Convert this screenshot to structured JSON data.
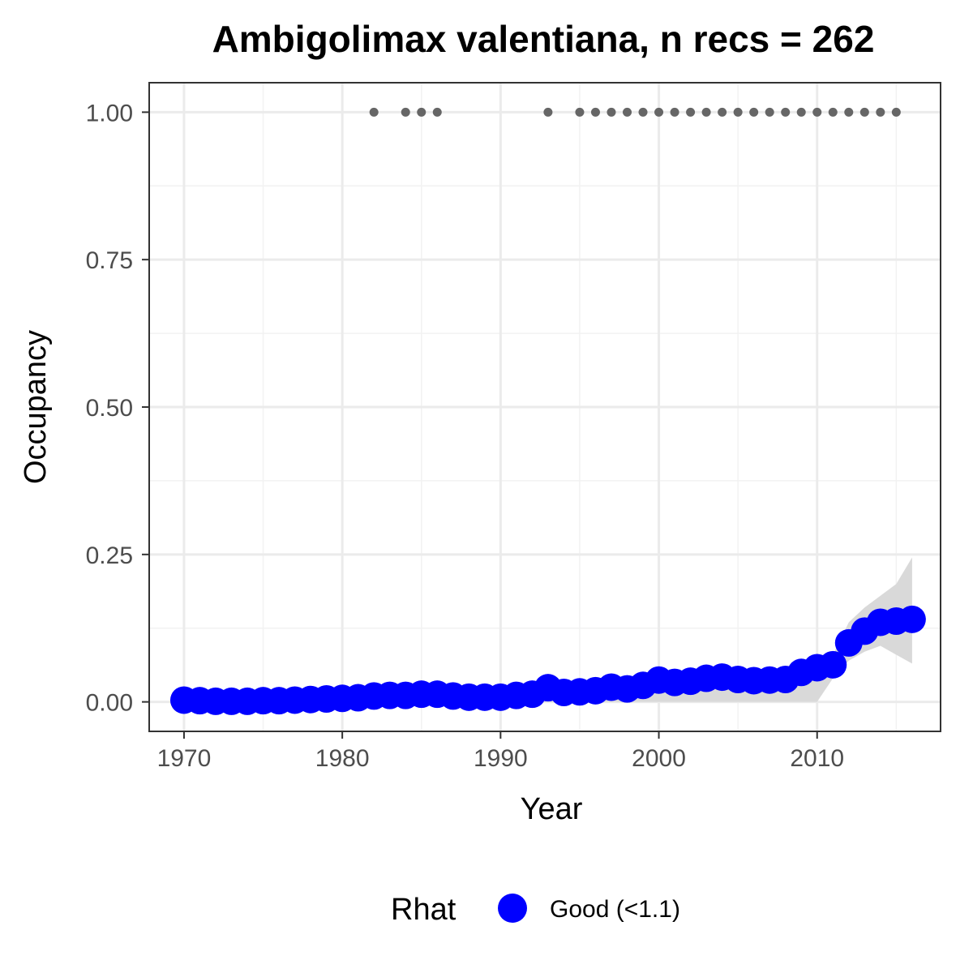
{
  "chart_data": {
    "type": "line",
    "title": "Ambigolimax valentiana, n recs = 262",
    "xlabel": "Year",
    "ylabel": "Occupancy",
    "xlim": [
      1967.8,
      2017.8
    ],
    "ylim": [
      -0.05,
      1.05
    ],
    "x_ticks": [
      1970,
      1980,
      1990,
      2000,
      2010
    ],
    "y_ticks": [
      0.0,
      0.25,
      0.5,
      0.75,
      1.0
    ],
    "y_tick_labels": [
      "0.00",
      "0.25",
      "0.50",
      "0.75",
      "1.00"
    ],
    "grid": true,
    "legend": {
      "position": "bottom",
      "title": "Rhat",
      "entries": [
        {
          "label": "Good (<1.1)",
          "color": "#0000ff"
        }
      ]
    },
    "series": [
      {
        "name": "Good (<1.1)",
        "color": "#0000ff",
        "x": [
          1970,
          1971,
          1972,
          1973,
          1974,
          1975,
          1976,
          1977,
          1978,
          1979,
          1980,
          1981,
          1982,
          1983,
          1984,
          1985,
          1986,
          1987,
          1988,
          1989,
          1990,
          1991,
          1992,
          1993,
          1994,
          1995,
          1996,
          1997,
          1998,
          1999,
          2000,
          2001,
          2002,
          2003,
          2004,
          2005,
          2006,
          2007,
          2008,
          2009,
          2010,
          2011,
          2012,
          2013,
          2014,
          2015,
          2016
        ],
        "y": [
          0.003,
          0.002,
          0.001,
          0.001,
          0.001,
          0.002,
          0.002,
          0.003,
          0.004,
          0.005,
          0.006,
          0.007,
          0.01,
          0.011,
          0.011,
          0.013,
          0.013,
          0.01,
          0.008,
          0.008,
          0.008,
          0.011,
          0.013,
          0.024,
          0.016,
          0.017,
          0.019,
          0.025,
          0.022,
          0.028,
          0.037,
          0.033,
          0.035,
          0.04,
          0.042,
          0.038,
          0.036,
          0.037,
          0.038,
          0.05,
          0.058,
          0.063,
          0.1,
          0.12,
          0.135,
          0.137,
          0.14
        ],
        "lower": [
          0.0,
          0.0,
          0.0,
          0.0,
          0.0,
          0.0,
          0.0,
          0.0,
          0.0,
          0.0,
          0.0,
          0.0,
          0.0,
          0.0,
          0.0,
          0.0,
          0.0,
          0.0,
          0.0,
          0.0,
          0.0,
          0.0,
          0.0,
          0.0,
          0.0,
          0.0,
          0.0,
          0.0,
          0.0,
          0.0,
          0.0,
          0.0,
          0.0,
          0.0,
          0.0,
          0.0,
          0.0,
          0.0,
          0.0,
          0.0,
          0.0,
          0.04,
          0.07,
          0.085,
          0.095,
          0.08,
          0.065
        ],
        "upper": [
          0.006,
          0.005,
          0.004,
          0.004,
          0.004,
          0.005,
          0.005,
          0.006,
          0.007,
          0.008,
          0.01,
          0.011,
          0.015,
          0.016,
          0.016,
          0.018,
          0.018,
          0.015,
          0.013,
          0.013,
          0.013,
          0.016,
          0.018,
          0.03,
          0.021,
          0.022,
          0.024,
          0.031,
          0.028,
          0.034,
          0.044,
          0.039,
          0.041,
          0.046,
          0.048,
          0.044,
          0.042,
          0.043,
          0.045,
          0.06,
          0.07,
          0.08,
          0.135,
          0.16,
          0.18,
          0.2,
          0.245
        ]
      }
    ],
    "records": {
      "color": "#666666",
      "y": 1.0,
      "x": [
        1982,
        1984,
        1985,
        1986,
        1993,
        1995,
        1996,
        1997,
        1998,
        1999,
        2000,
        2001,
        2002,
        2003,
        2004,
        2005,
        2006,
        2007,
        2008,
        2009,
        2010,
        2011,
        2012,
        2013,
        2014,
        2015
      ]
    }
  }
}
